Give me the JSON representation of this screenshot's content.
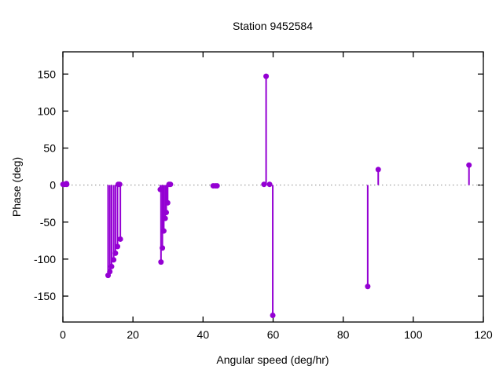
{
  "chart": {
    "title": "Station 9452584",
    "xlabel": "Angular speed (deg/hr)",
    "ylabel": "Phase (deg)"
  },
  "chart_data": {
    "type": "scatter",
    "style": "stem-impulses-with-filled-circle-points",
    "title": "Station 9452584",
    "xlabel": "Angular speed (deg/hr)",
    "ylabel": "Phase (deg)",
    "xlim": [
      0,
      120
    ],
    "ylim": [
      -185,
      180
    ],
    "xticks": [
      0,
      20,
      40,
      60,
      80,
      100,
      120
    ],
    "yticks": [
      -150,
      -100,
      -50,
      0,
      50,
      100,
      150
    ],
    "grid": "dotted horizontal zero line only",
    "legend": "none",
    "tick_style": "inward, mirrored on all four borders",
    "marker": "filled-circle",
    "marker_diameter_px": 7,
    "colors": {
      "series": "#9400d3",
      "zero_line": "#a0a0a0",
      "axis": "#000000",
      "text": "#000000",
      "background": "#ffffff"
    },
    "points": [
      [
        0.04,
        1
      ],
      [
        0.08,
        1
      ],
      [
        0.54,
        1
      ],
      [
        1.02,
        2
      ],
      [
        1.1,
        1
      ],
      [
        12.9,
        -122
      ],
      [
        13.4,
        -117
      ],
      [
        13.9,
        -110
      ],
      [
        14.5,
        -101
      ],
      [
        15.0,
        -92
      ],
      [
        15.6,
        -83
      ],
      [
        16.4,
        -73
      ],
      [
        15.8,
        1
      ],
      [
        16.2,
        1
      ],
      [
        27.8,
        -6
      ],
      [
        28.0,
        -104
      ],
      [
        28.4,
        -85
      ],
      [
        28.8,
        -62
      ],
      [
        29.2,
        -45
      ],
      [
        29.5,
        -37
      ],
      [
        29.9,
        -24
      ],
      [
        30.3,
        1
      ],
      [
        30.7,
        1
      ],
      [
        42.9,
        -1
      ],
      [
        43.5,
        -1
      ],
      [
        44.0,
        -1
      ],
      [
        57.4,
        1
      ],
      [
        58.0,
        147
      ],
      [
        59.0,
        1
      ],
      [
        59.9,
        -176
      ],
      [
        87.0,
        -137
      ],
      [
        90.0,
        21
      ],
      [
        115.9,
        27
      ]
    ]
  }
}
